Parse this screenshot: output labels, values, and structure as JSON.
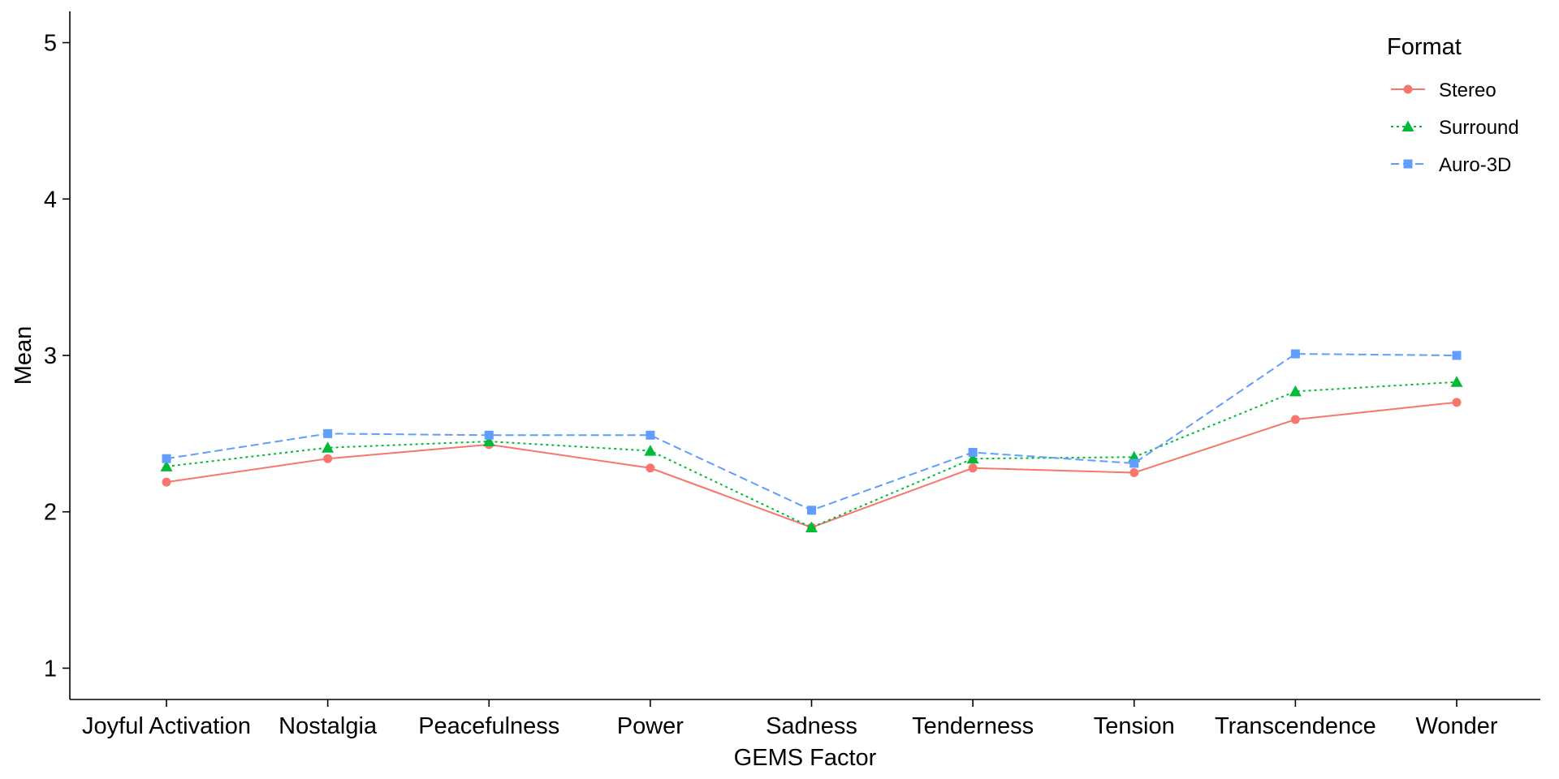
{
  "chart_data": {
    "type": "line",
    "xlabel": "GEMS Factor",
    "ylabel": "Mean",
    "ylim": [
      0.8,
      5.2
    ],
    "yticks": [
      1,
      2,
      3,
      4,
      5
    ],
    "categories": [
      "Joyful Activation",
      "Nostalgia",
      "Peacefulness",
      "Power",
      "Sadness",
      "Tenderness",
      "Tension",
      "Transcendence",
      "Wonder"
    ],
    "grid": false,
    "legend": {
      "title": "Format",
      "position": "top-right"
    },
    "series": [
      {
        "name": "Stereo",
        "color": "#F8766D",
        "marker": "circle",
        "line": "solid",
        "values": [
          2.19,
          2.34,
          2.43,
          2.28,
          1.9,
          2.28,
          2.25,
          2.59,
          2.7
        ]
      },
      {
        "name": "Surround",
        "color": "#00BA38",
        "marker": "triangle",
        "line": "dotted",
        "values": [
          2.29,
          2.41,
          2.45,
          2.39,
          1.9,
          2.34,
          2.35,
          2.77,
          2.83
        ]
      },
      {
        "name": "Auro-3D",
        "color": "#619CFF",
        "marker": "square",
        "line": "dashed",
        "values": [
          2.34,
          2.5,
          2.49,
          2.49,
          2.01,
          2.38,
          2.31,
          3.01,
          3.0
        ]
      }
    ]
  }
}
